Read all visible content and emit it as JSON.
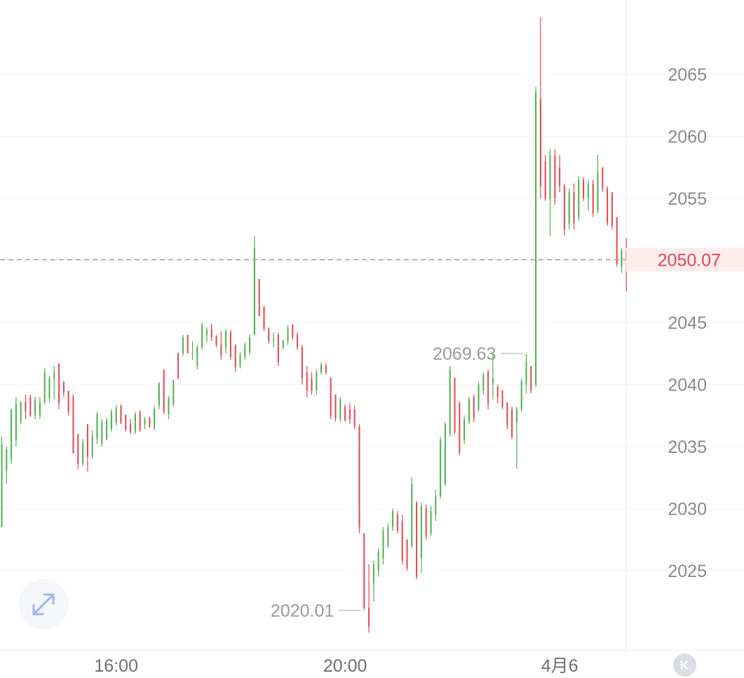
{
  "chart_data": {
    "type": "candlestick",
    "title": "",
    "xlabel": "",
    "ylabel": "",
    "ylim": [
      2018.6,
      2071.0
    ],
    "y_ticks": [
      2065,
      2060,
      2055,
      2050,
      2045,
      2040,
      2035,
      2030,
      2025
    ],
    "y_tick_labels": [
      "2065",
      "2060",
      "2055",
      "2050",
      "2045",
      "2040",
      "2035",
      "2030",
      "2025"
    ],
    "x_tick_labels": [
      "16:00",
      "20:00",
      "4月6"
    ],
    "x_tick_candle_index": [
      24,
      72,
      117
    ],
    "last_price": 2050.07,
    "last_price_label": "2050.07",
    "high_label": "2069.63",
    "high_candle_index": 110,
    "low_label": "2020.01",
    "low_candle_index": 76,
    "up_color": "#4caf50",
    "down_color": "#e0464f",
    "grid": true,
    "candles_ohlc": [
      [
        2028.5,
        2035.8,
        2028.5,
        2035.2
      ],
      [
        2033.0,
        2035.0,
        2032.0,
        2034.8
      ],
      [
        2034.0,
        2038.0,
        2033.6,
        2038.0
      ],
      [
        2035.5,
        2039.0,
        2035.0,
        2038.4
      ],
      [
        2037.0,
        2038.6,
        2036.8,
        2038.6
      ],
      [
        2038.6,
        2039.2,
        2037.2,
        2037.8
      ],
      [
        2039.0,
        2039.2,
        2037.4,
        2037.5
      ],
      [
        2037.5,
        2039.0,
        2037.2,
        2038.8
      ],
      [
        2037.5,
        2039.0,
        2037.2,
        2038.6
      ],
      [
        2038.6,
        2041.3,
        2038.4,
        2041.0
      ],
      [
        2038.9,
        2040.7,
        2038.6,
        2040.5
      ],
      [
        2040.5,
        2041.5,
        2038.8,
        2040.9
      ],
      [
        2041.7,
        2041.7,
        2038.0,
        2038.5
      ],
      [
        2040.2,
        2040.3,
        2039.0,
        2039.4
      ],
      [
        2039.5,
        2039.5,
        2037.5,
        2037.8
      ],
      [
        2039.0,
        2039.2,
        2034.4,
        2034.5
      ],
      [
        2036.0,
        2036.0,
        2033.2,
        2033.6
      ],
      [
        2033.6,
        2035.6,
        2033.4,
        2035.3
      ],
      [
        2036.8,
        2036.8,
        2033.0,
        2034.2
      ],
      [
        2034.2,
        2036.3,
        2034.0,
        2035.8
      ],
      [
        2035.6,
        2037.8,
        2035.2,
        2037.6
      ],
      [
        2035.2,
        2037.2,
        2035.0,
        2036.9
      ],
      [
        2035.6,
        2037.3,
        2035.5,
        2037.1
      ],
      [
        2036.4,
        2038.0,
        2036.2,
        2037.8
      ],
      [
        2036.9,
        2038.3,
        2036.7,
        2038.1
      ],
      [
        2038.3,
        2038.4,
        2036.8,
        2036.9
      ],
      [
        2037.5,
        2037.6,
        2036.2,
        2036.4
      ],
      [
        2036.8,
        2037.2,
        2036.0,
        2036.2
      ],
      [
        2036.2,
        2037.8,
        2036.0,
        2037.6
      ],
      [
        2037.8,
        2037.9,
        2036.2,
        2036.3
      ],
      [
        2036.8,
        2037.4,
        2036.4,
        2037.2
      ],
      [
        2037.3,
        2037.4,
        2036.5,
        2036.6
      ],
      [
        2036.5,
        2038.3,
        2036.3,
        2038.0
      ],
      [
        2038.3,
        2040.2,
        2038.0,
        2040.1
      ],
      [
        2041.2,
        2041.2,
        2037.6,
        2037.8
      ],
      [
        2037.6,
        2039.1,
        2037.2,
        2038.9
      ],
      [
        2038.4,
        2040.4,
        2038.2,
        2040.3
      ],
      [
        2042.5,
        2042.6,
        2040.4,
        2040.5
      ],
      [
        2042.5,
        2044.0,
        2042.3,
        2043.8
      ],
      [
        2044.0,
        2044.0,
        2042.5,
        2042.5
      ],
      [
        2042.5,
        2043.5,
        2042.0,
        2042.5
      ],
      [
        2041.5,
        2043.2,
        2041.2,
        2043.0
      ],
      [
        2043.0,
        2045.0,
        2042.8,
        2044.8
      ],
      [
        2044.0,
        2044.6,
        2043.4,
        2044.4
      ],
      [
        2044.5,
        2044.9,
        2043.5,
        2043.8
      ],
      [
        2043.9,
        2044.0,
        2043.0,
        2043.2
      ],
      [
        2043.2,
        2044.3,
        2042.0,
        2042.3
      ],
      [
        2043.0,
        2044.5,
        2042.5,
        2044.3
      ],
      [
        2044.2,
        2044.4,
        2042.0,
        2042.2
      ],
      [
        2043.2,
        2043.2,
        2041.0,
        2041.4
      ],
      [
        2041.5,
        2042.6,
        2041.3,
        2042.4
      ],
      [
        2042.2,
        2043.4,
        2042.0,
        2043.2
      ],
      [
        2042.6,
        2044.0,
        2042.4,
        2043.8
      ],
      [
        2044.0,
        2052.0,
        2044.0,
        2051.0
      ],
      [
        2048.5,
        2048.5,
        2045.5,
        2045.5
      ],
      [
        2046.3,
        2046.3,
        2044.3,
        2044.5
      ],
      [
        2044.5,
        2044.6,
        2043.3,
        2043.5
      ],
      [
        2043.5,
        2044.2,
        2043.0,
        2043.6
      ],
      [
        2044.0,
        2044.2,
        2041.5,
        2041.8
      ],
      [
        2043.0,
        2043.6,
        2042.8,
        2043.5
      ],
      [
        2043.5,
        2044.8,
        2043.2,
        2044.5
      ],
      [
        2044.8,
        2044.9,
        2043.6,
        2043.8
      ],
      [
        2044.0,
        2044.2,
        2042.8,
        2043.0
      ],
      [
        2043.0,
        2043.2,
        2040.0,
        2040.5
      ],
      [
        2041.0,
        2041.5,
        2039.0,
        2039.5
      ],
      [
        2040.5,
        2041.0,
        2039.2,
        2039.5
      ],
      [
        2039.5,
        2041.2,
        2039.2,
        2041.0
      ],
      [
        2041.0,
        2041.8,
        2040.8,
        2041.6
      ],
      [
        2041.5,
        2041.7,
        2040.8,
        2041.0
      ],
      [
        2040.5,
        2040.6,
        2037.2,
        2037.5
      ],
      [
        2039.2,
        2039.2,
        2037.0,
        2037.3
      ],
      [
        2037.2,
        2039.0,
        2037.0,
        2038.8
      ],
      [
        2038.2,
        2038.4,
        2037.0,
        2037.1
      ],
      [
        2038.0,
        2038.5,
        2036.8,
        2037.2
      ],
      [
        2038.0,
        2038.3,
        2036.4,
        2036.6
      ],
      [
        2036.6,
        2036.8,
        2028.0,
        2028.5
      ],
      [
        2028.0,
        2028.0,
        2021.8,
        2022.0
      ],
      [
        2022.0,
        2025.5,
        2020.0,
        2020.5
      ],
      [
        2024.0,
        2025.8,
        2022.5,
        2025.5
      ],
      [
        2025.0,
        2026.8,
        2024.5,
        2026.5
      ],
      [
        2026.0,
        2028.5,
        2025.5,
        2028.2
      ],
      [
        2027.0,
        2028.8,
        2026.8,
        2028.5
      ],
      [
        2028.5,
        2030.0,
        2028.2,
        2029.8
      ],
      [
        2029.5,
        2029.8,
        2028.0,
        2028.2
      ],
      [
        2029.0,
        2029.5,
        2025.5,
        2025.8
      ],
      [
        2027.5,
        2027.5,
        2025.0,
        2025.2
      ],
      [
        2027.0,
        2032.5,
        2026.8,
        2032.0
      ],
      [
        2030.5,
        2030.6,
        2024.3,
        2024.5
      ],
      [
        2026.0,
        2030.5,
        2024.8,
        2030.2
      ],
      [
        2030.0,
        2030.3,
        2027.5,
        2027.8
      ],
      [
        2028.0,
        2030.2,
        2027.8,
        2029.8
      ],
      [
        2029.5,
        2031.5,
        2029.0,
        2031.0
      ],
      [
        2031.0,
        2035.8,
        2030.8,
        2035.5
      ],
      [
        2032.0,
        2037.0,
        2031.8,
        2036.8
      ],
      [
        2036.0,
        2041.5,
        2035.8,
        2041.2
      ],
      [
        2040.5,
        2040.6,
        2036.0,
        2036.2
      ],
      [
        2038.5,
        2038.6,
        2034.3,
        2034.5
      ],
      [
        2035.5,
        2037.5,
        2035.2,
        2037.2
      ],
      [
        2037.0,
        2039.0,
        2036.8,
        2038.8
      ],
      [
        2039.0,
        2039.2,
        2037.0,
        2037.3
      ],
      [
        2038.0,
        2040.2,
        2037.8,
        2040.0
      ],
      [
        2039.5,
        2041.0,
        2039.2,
        2040.8
      ],
      [
        2041.0,
        2041.2,
        2038.0,
        2038.5
      ],
      [
        2040.0,
        2042.5,
        2038.8,
        2040.5
      ],
      [
        2039.8,
        2040.0,
        2038.5,
        2039.0
      ],
      [
        2039.5,
        2039.6,
        2038.0,
        2038.2
      ],
      [
        2038.5,
        2038.6,
        2036.4,
        2036.7
      ],
      [
        2038.0,
        2038.2,
        2035.6,
        2035.8
      ],
      [
        2037.0,
        2038.2,
        2033.2,
        2038.0
      ],
      [
        2038.0,
        2040.5,
        2037.8,
        2040.3
      ],
      [
        2040.0,
        2042.5,
        2039.3,
        2041.8
      ],
      [
        2041.5,
        2041.5,
        2039.3,
        2039.5
      ],
      [
        2040.0,
        2064.0,
        2039.8,
        2063.5
      ],
      [
        2063.0,
        2069.6,
        2055.0,
        2056.0
      ],
      [
        2058.0,
        2058.5,
        2054.8,
        2055.0
      ],
      [
        2055.0,
        2059.0,
        2052.0,
        2058.5
      ],
      [
        2058.5,
        2059.0,
        2054.5,
        2055.0
      ],
      [
        2057.5,
        2058.5,
        2055.5,
        2056.0
      ],
      [
        2056.0,
        2056.2,
        2052.0,
        2052.5
      ],
      [
        2053.0,
        2055.8,
        2052.5,
        2055.5
      ],
      [
        2055.5,
        2056.2,
        2052.5,
        2053.0
      ],
      [
        2053.5,
        2056.8,
        2053.2,
        2056.5
      ],
      [
        2056.5,
        2056.7,
        2054.8,
        2055.0
      ],
      [
        2055.0,
        2056.5,
        2054.0,
        2056.2
      ],
      [
        2056.2,
        2056.5,
        2053.5,
        2053.8
      ],
      [
        2054.0,
        2058.5,
        2053.8,
        2057.0
      ],
      [
        2057.5,
        2057.5,
        2055.5,
        2055.8
      ],
      [
        2055.8,
        2056.0,
        2052.8,
        2053.0
      ],
      [
        2055.5,
        2055.5,
        2052.5,
        2052.8
      ],
      [
        2053.5,
        2053.5,
        2049.5,
        2049.7
      ],
      [
        2049.5,
        2051.0,
        2049.0,
        2050.8
      ],
      [
        2050.8,
        2051.8,
        2047.5,
        2050.07
      ]
    ]
  },
  "icons": {
    "expand": "expand-arrows-icon",
    "collapse": "skip-to-start-icon"
  }
}
